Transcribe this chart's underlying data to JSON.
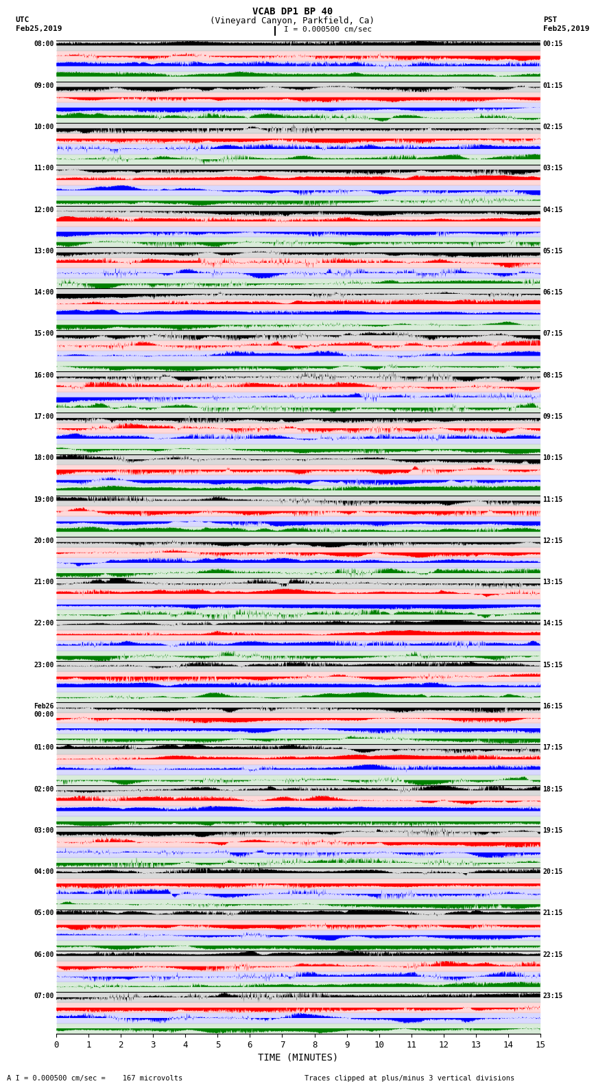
{
  "title_line1": "VCAB DP1 BP 40",
  "title_line2": "(Vineyard Canyon, Parkfield, Ca)",
  "scale_label": "I = 0.000500 cm/sec",
  "left_label_line1": "UTC",
  "left_label_line2": "Feb25,2019",
  "right_label_line1": "PST",
  "right_label_line2": "Feb25,2019",
  "xlabel": "TIME (MINUTES)",
  "footer_left": "A I = 0.000500 cm/sec =    167 microvolts",
  "footer_right": "Traces clipped at plus/minus 3 vertical divisions",
  "utc_times": [
    "08:00",
    "09:00",
    "10:00",
    "11:00",
    "12:00",
    "13:00",
    "14:00",
    "15:00",
    "16:00",
    "17:00",
    "18:00",
    "19:00",
    "20:00",
    "21:00",
    "22:00",
    "23:00",
    "Feb26\n00:00",
    "01:00",
    "02:00",
    "03:00",
    "04:00",
    "05:00",
    "06:00",
    "07:00"
  ],
  "pst_times": [
    "00:15",
    "01:15",
    "02:15",
    "03:15",
    "04:15",
    "05:15",
    "06:15",
    "07:15",
    "08:15",
    "09:15",
    "10:15",
    "11:15",
    "12:15",
    "13:15",
    "14:15",
    "15:15",
    "16:15",
    "17:15",
    "18:15",
    "19:15",
    "20:15",
    "21:15",
    "22:15",
    "23:15"
  ],
  "n_traces": 24,
  "n_points": 1800,
  "xmin": 0,
  "xmax": 15,
  "sub_colors": [
    "black",
    "red",
    "blue",
    "green"
  ],
  "n_sub": 4,
  "seed": 12345
}
